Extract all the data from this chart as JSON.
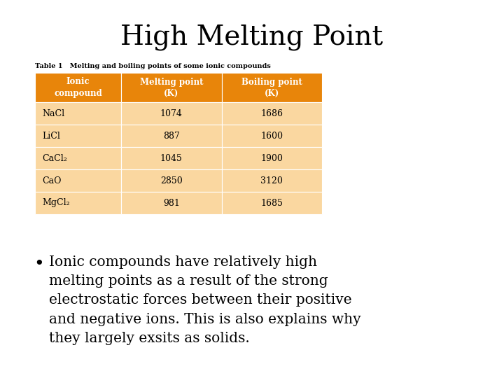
{
  "title": "High Melting Point",
  "title_fontsize": 28,
  "table_caption": "Table 1   Melting and boiling points of some ionic compounds",
  "header_bg": "#E8850A",
  "header_text_color": "#FFFFFF",
  "row_bg": "#FAD7A0",
  "row_text_color": "#000000",
  "col_headers": [
    "Ionic\ncompound",
    "Melting point\n(K)",
    "Boiling point\n(K)"
  ],
  "rows": [
    [
      "NaCl",
      "1074",
      "1686"
    ],
    [
      "LiCl",
      "887",
      "1600"
    ],
    [
      "CaCl₂",
      "1045",
      "1900"
    ],
    [
      "CaO",
      "2850",
      "3120"
    ],
    [
      "MgCl₂",
      "981",
      "1685"
    ]
  ],
  "bullet_text": "Ionic compounds have relatively high\nmelting points as a result of the strong\nelectrostatic forces between their positive\nand negative ions. This is also explains why\nthey largely exsits as solids.",
  "bullet_fontsize": 14.5,
  "background_color": "#FFFFFF",
  "caption_fontsize": 7.0,
  "header_fontsize": 8.5,
  "data_fontsize": 9.0
}
